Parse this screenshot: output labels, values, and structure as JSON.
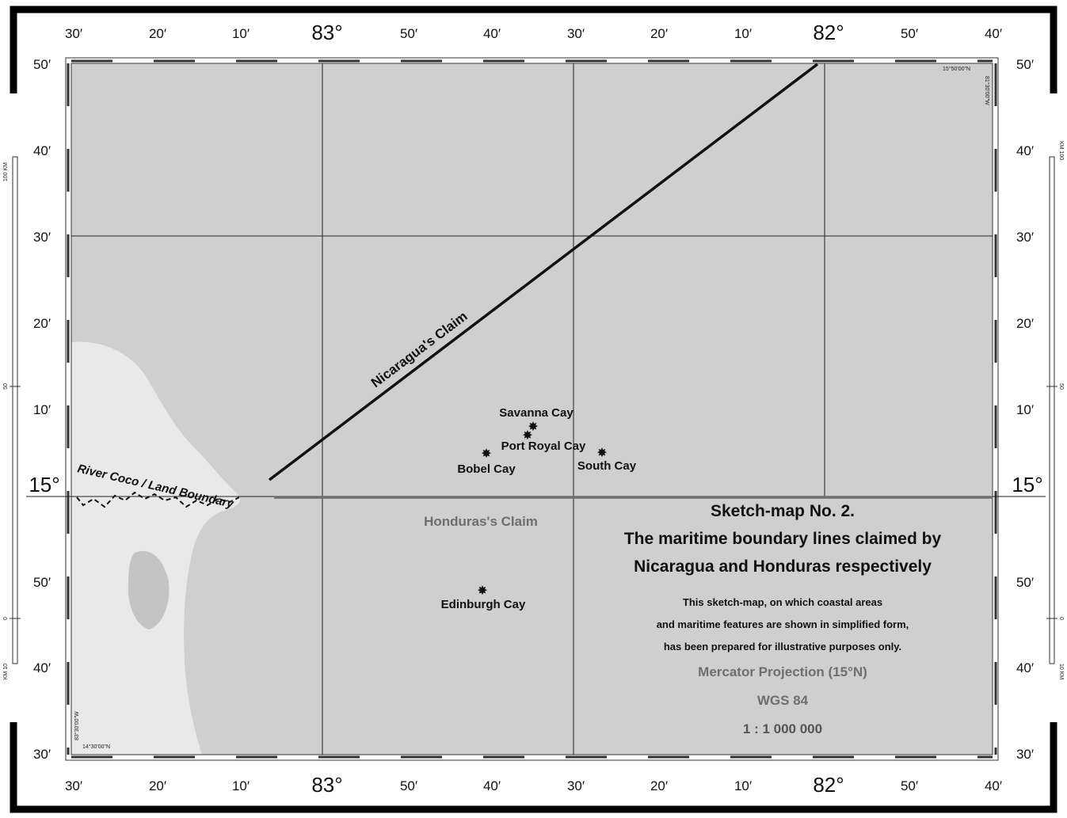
{
  "map": {
    "top_ticks": [
      "30′",
      "20′",
      "10′",
      "83°",
      "50′",
      "40′",
      "30′",
      "20′",
      "10′",
      "82°",
      "50′",
      "40′"
    ],
    "bottom_ticks": [
      "30′",
      "20′",
      "10′",
      "83°",
      "50′",
      "40′",
      "30′",
      "20′",
      "10′",
      "82°",
      "50′",
      "40′"
    ],
    "side_ticks": [
      "50′",
      "40′",
      "30′",
      "20′",
      "10′",
      "15°",
      "50′",
      "40′",
      "30′"
    ],
    "corner_top_right_lat": "15°50'00\"N",
    "corner_top_right_lon": "81°30'00\"W",
    "corner_bottom_left_lat": "14°30'00\"N",
    "corner_bottom_left_lon": "83°30'00\"W",
    "km_scale_left": [
      "100 KM",
      "50",
      "0",
      "KM 10"
    ],
    "km_scale_right": [
      "KM 100",
      "50",
      "0",
      "10 KM"
    ]
  },
  "labels": {
    "nicaragua_claim": "Nicaragua's Claim",
    "honduras_claim": "Honduras's Claim",
    "river_coco": "River Coco / Land Boundary"
  },
  "features": [
    {
      "name": "Savanna Cay"
    },
    {
      "name": "Port Royal Cay"
    },
    {
      "name": "Bobel Cay"
    },
    {
      "name": "South Cay"
    },
    {
      "name": "Edinburgh Cay"
    }
  ],
  "legend": {
    "title_line1": "Sketch-map No. 2.",
    "title_line2": "The maritime boundary lines claimed by",
    "title_line3": "Nicaragua and Honduras respectively",
    "note_line1": "This sketch-map, on which coastal areas",
    "note_line2": "and maritime features are shown in simplified form,",
    "note_line3": "has been prepared for illustrative purposes only.",
    "projection": "Mercator Projection (15°N)",
    "datum": "WGS 84",
    "scale": "1 : 1 000 000"
  },
  "colors": {
    "sea": "#cfcfcf",
    "land": "#e9e9e9",
    "nicaragua_line": "#111111",
    "honduras_line": "#6e6e6e",
    "grid": "#222222"
  }
}
